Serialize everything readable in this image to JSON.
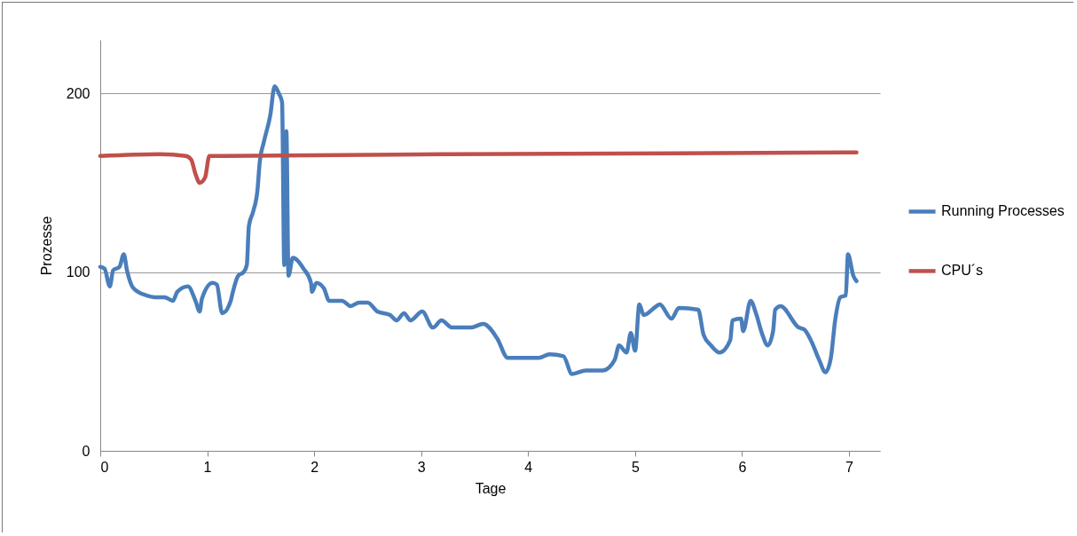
{
  "chart_data": {
    "type": "line",
    "xlabel": "Tage",
    "ylabel": "Prozesse",
    "xlim": [
      0,
      7.29
    ],
    "ylim": [
      0,
      230
    ],
    "xticks": [
      0,
      1,
      2,
      3,
      4,
      5,
      6,
      7
    ],
    "yticks": [
      0,
      100,
      200
    ],
    "grid": "y",
    "legend": "right",
    "line_style": "solid",
    "marker": "none",
    "series": [
      {
        "name": "Running Processes",
        "color": "#4a7ebb",
        "x": [
          0,
          0.04,
          0.09,
          0.12,
          0.18,
          0.22,
          0.25,
          0.31,
          0.43,
          0.51,
          0.6,
          0.68,
          0.72,
          0.82,
          0.89,
          0.93,
          0.95,
          1.05,
          1.09,
          1.14,
          1.22,
          1.24,
          1.29,
          1.34,
          1.37,
          1.39,
          1.43,
          1.47,
          1.49,
          1.53,
          1.59,
          1.63,
          1.67,
          1.7,
          1.72,
          1.74,
          1.76,
          1.8,
          1.9,
          1.97,
          1.98,
          2.02,
          2.09,
          2.14,
          2.26,
          2.34,
          2.42,
          2.5,
          2.59,
          2.71,
          2.77,
          2.84,
          2.9,
          3.01,
          3.11,
          3.19,
          3.29,
          3.46,
          3.58,
          3.71,
          3.81,
          3.87,
          4.1,
          4.2,
          4.33,
          4.41,
          4.54,
          4.7,
          4.81,
          4.85,
          4.92,
          4.96,
          5,
          5.04,
          5.08,
          5.2,
          5.23,
          5.34,
          5.41,
          5.59,
          5.64,
          5.71,
          5.79,
          5.89,
          5.91,
          5.99,
          6.01,
          6.08,
          6.13,
          6.19,
          6.24,
          6.29,
          6.31,
          6.36,
          6.53,
          6.58,
          6.65,
          6.72,
          6.78,
          6.83,
          6.87,
          6.92,
          6.97,
          6.99,
          7.04,
          7.07
        ],
        "values": [
          103,
          102,
          92,
          101,
          103,
          110,
          101,
          91,
          87,
          86,
          86,
          84,
          89,
          92,
          84,
          78,
          85,
          94,
          93,
          77,
          84,
          89,
          98,
          100,
          104,
          126,
          134,
          146,
          161,
          173,
          188,
          204,
          200,
          195,
          104,
          179,
          98,
          108,
          102,
          94,
          89,
          94,
          91,
          84,
          84,
          81,
          83,
          83,
          78,
          76,
          73,
          77,
          73,
          78,
          69,
          73,
          69,
          69,
          71,
          63,
          52,
          52,
          52,
          54,
          53,
          43,
          45,
          45,
          51,
          59,
          55,
          66,
          56,
          82,
          76,
          81,
          82,
          74,
          80,
          79,
          65,
          59,
          55,
          62,
          73,
          74,
          67,
          84,
          77,
          65,
          59,
          67,
          79,
          81,
          69,
          68,
          61,
          51,
          44,
          52,
          73,
          86,
          87,
          110,
          98,
          95
        ]
      },
      {
        "name": "CPU´s",
        "color": "#c0504d",
        "x": [
          0,
          0.56,
          0.8,
          0.85,
          0.89,
          0.93,
          0.98,
          1.02,
          3.21,
          7.07
        ],
        "values": [
          165,
          166,
          165,
          163,
          155,
          150,
          153,
          165,
          166,
          167
        ]
      }
    ]
  }
}
